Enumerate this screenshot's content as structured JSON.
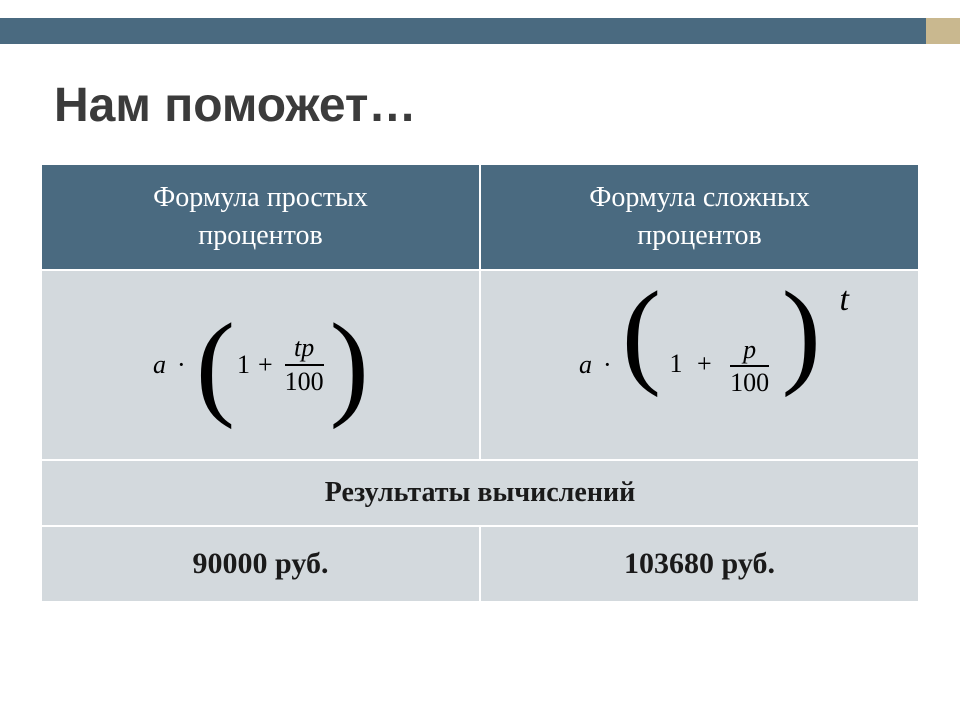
{
  "slide": {
    "title": "Нам поможет…",
    "title_color": "#3b3b3b",
    "decor_main_color": "#4a6a80",
    "decor_accent_color": "#c9b88f"
  },
  "table": {
    "header_bg": "#4a6a80",
    "header_text_color": "#ffffff",
    "light_bg": "#d3d9dd",
    "light_text_color": "#1a1a1a",
    "border_color": "#ffffff",
    "columns": [
      {
        "label_line1": "Формула простых",
        "label_line2": "процентов"
      },
      {
        "label_line1": "Формула сложных",
        "label_line2": "процентов"
      }
    ],
    "formulas": {
      "simple": {
        "a": "a",
        "dot": "·",
        "one": "1",
        "plus": "+",
        "num": "tp",
        "den": "100"
      },
      "compound": {
        "a": "a",
        "dot": "·",
        "one": "1",
        "plus": "+",
        "num": "p",
        "den": "100",
        "exp": "t"
      }
    },
    "results_header": "Результаты вычислений",
    "results": [
      "90000 руб.",
      "103680 руб."
    ]
  }
}
